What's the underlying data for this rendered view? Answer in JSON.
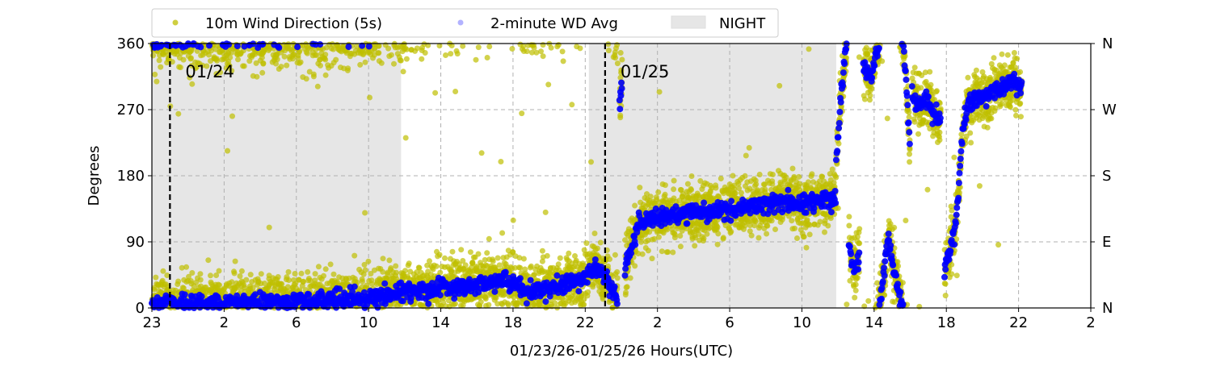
{
  "chart_data": {
    "type": "scatter",
    "xlabel": "01/23/26-01/25/26  Hours(UTC)",
    "ylabel": "Degrees",
    "xlim_hours": [
      0,
      52
    ],
    "ylim": [
      0,
      360
    ],
    "x_ticks": [
      {
        "value": 0,
        "label": "23"
      },
      {
        "value": 4,
        "label": "2"
      },
      {
        "value": 8,
        "label": "6"
      },
      {
        "value": 12,
        "label": "10"
      },
      {
        "value": 16,
        "label": "14"
      },
      {
        "value": 20,
        "label": "18"
      },
      {
        "value": 24,
        "label": "22"
      },
      {
        "value": 28,
        "label": "2"
      },
      {
        "value": 32,
        "label": "6"
      },
      {
        "value": 36,
        "label": "10"
      },
      {
        "value": 40,
        "label": "14"
      },
      {
        "value": 44,
        "label": "18"
      },
      {
        "value": 48,
        "label": "22"
      },
      {
        "value": 52,
        "label": "2"
      }
    ],
    "y_ticks": [
      {
        "value": 0,
        "label": "0"
      },
      {
        "value": 90,
        "label": "90"
      },
      {
        "value": 180,
        "label": "180"
      },
      {
        "value": 270,
        "label": "270"
      },
      {
        "value": 360,
        "label": "360"
      }
    ],
    "y_ticks_right": [
      {
        "value": 0,
        "label": "N"
      },
      {
        "value": 90,
        "label": "E"
      },
      {
        "value": 180,
        "label": "S"
      },
      {
        "value": 270,
        "label": "W"
      },
      {
        "value": 360,
        "label": "N"
      }
    ],
    "grid": true,
    "night_periods": [
      [
        0,
        13.8
      ],
      [
        24.2,
        37.9
      ]
    ],
    "date_markers": [
      {
        "x": 1.0,
        "label": "01/24"
      },
      {
        "x": 25.1,
        "label": "01/25"
      }
    ],
    "legend": {
      "placement": "top",
      "entries": [
        {
          "label": "10m Wind Direction (5s)",
          "color": "#bfbf00"
        },
        {
          "label": "2-minute WD Avg",
          "color": "#0000ff"
        },
        {
          "label": "NIGHT",
          "color": "#e6e6e6"
        }
      ]
    },
    "series": [
      {
        "name": "2-minute WD Avg",
        "color": "#0000ff",
        "segments": [
          [
            [
              0,
              5
            ],
            [
              8,
              8
            ],
            [
              12,
              12
            ],
            [
              14,
              22
            ],
            [
              16,
              28
            ],
            [
              18,
              32
            ],
            [
              19.5,
              38
            ],
            [
              21,
              22
            ],
            [
              22.5,
              30
            ],
            [
              24,
              42
            ],
            [
              24.5,
              55
            ],
            [
              25.2,
              40
            ],
            [
              25.8,
              10
            ]
          ],
          [
            [
              25.9,
              -80
            ],
            [
              26.05,
              -50
            ]
          ],
          [
            [
              26.2,
              50
            ],
            [
              26.6,
              90
            ],
            [
              27,
              115
            ],
            [
              28,
              125
            ],
            [
              30,
              128
            ],
            [
              32,
              135
            ],
            [
              34,
              140
            ],
            [
              35,
              145
            ],
            [
              36,
              140
            ],
            [
              37,
              148
            ],
            [
              37.9,
              152
            ]
          ],
          [
            [
              37.9,
              200
            ],
            [
              38.1,
              270
            ],
            [
              38.3,
              320
            ],
            [
              38.5,
              360
            ]
          ],
          [
            [
              38.6,
              85
            ],
            [
              38.8,
              60
            ],
            [
              39.0,
              55
            ],
            [
              39.2,
              80
            ]
          ],
          [
            [
              39.4,
              330
            ],
            [
              39.8,
              315
            ],
            [
              40.1,
              345
            ],
            [
              40.3,
              360
            ]
          ],
          [
            [
              40.3,
              5
            ],
            [
              40.6,
              60
            ],
            [
              40.8,
              95
            ],
            [
              41.1,
              50
            ],
            [
              41.4,
              20
            ],
            [
              41.6,
              0
            ]
          ],
          [
            [
              41.6,
              360
            ],
            [
              41.8,
              300
            ],
            [
              42.0,
              200
            ]
          ],
          [
            [
              42.1,
              290
            ],
            [
              42.5,
              275
            ],
            [
              43,
              285
            ],
            [
              43.3,
              265
            ],
            [
              43.7,
              255
            ]
          ],
          [
            [
              43.9,
              50
            ],
            [
              44.2,
              80
            ],
            [
              44.5,
              110
            ],
            [
              44.7,
              170
            ],
            [
              44.9,
              240
            ],
            [
              45.2,
              280
            ],
            [
              45.8,
              285
            ],
            [
              46.5,
              295
            ],
            [
              47.2,
              300
            ],
            [
              47.7,
              310
            ],
            [
              48.2,
              300
            ]
          ]
        ]
      },
      {
        "name": "10m Wind Direction (5s)",
        "color": "#bfbf00",
        "spread_deg": 18,
        "follows": "2-minute WD Avg"
      }
    ]
  }
}
